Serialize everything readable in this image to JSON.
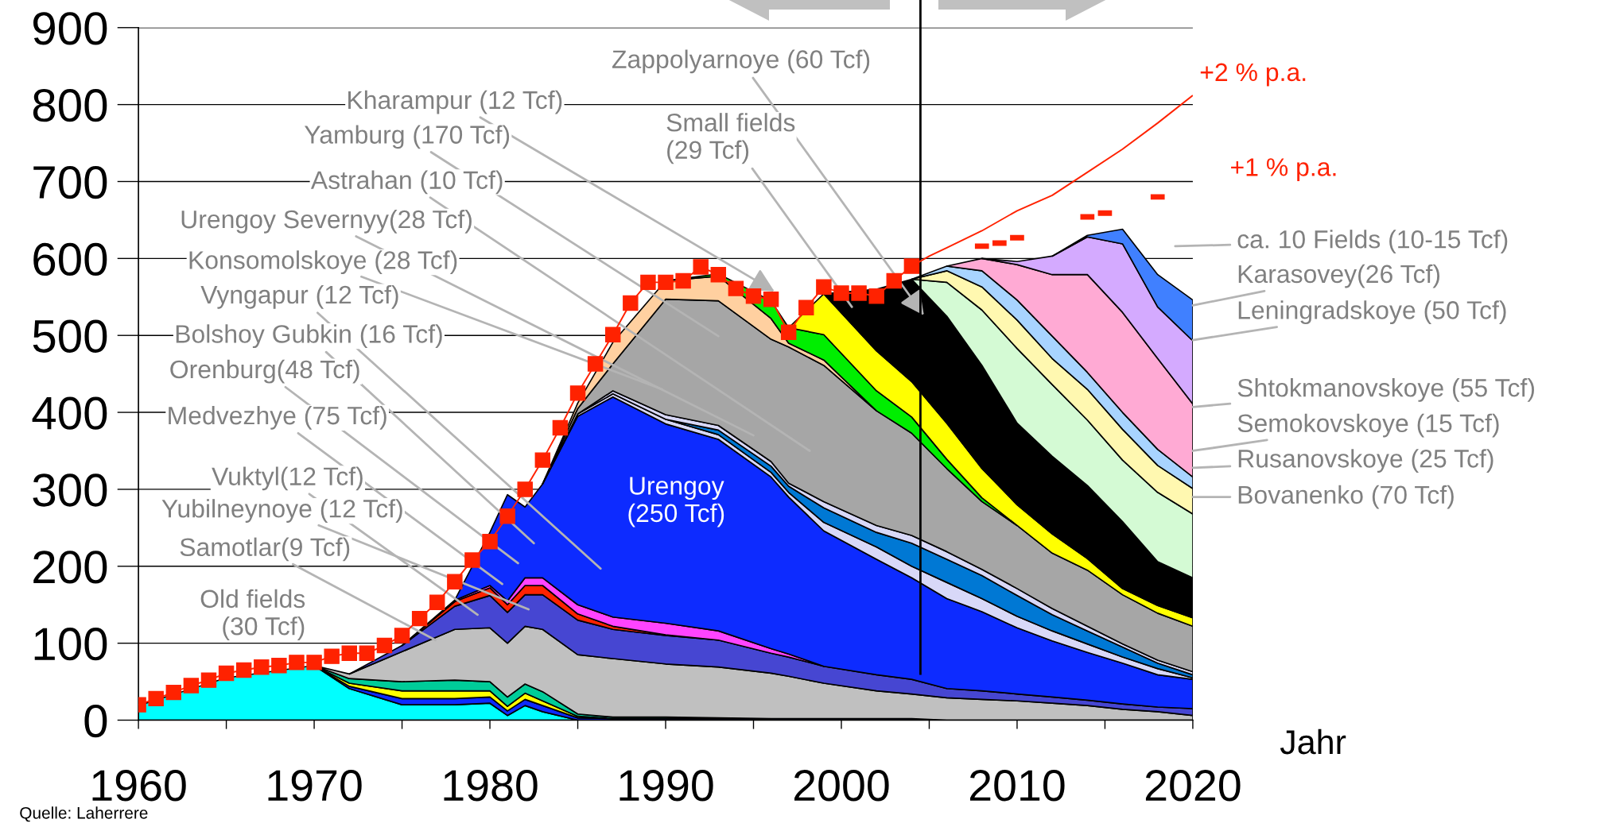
{
  "chart_data": {
    "type": "area",
    "stacked": true,
    "x": [
      1960,
      1965,
      1970,
      1972,
      1975,
      1978,
      1980,
      1981,
      1982,
      1983,
      1985,
      1987,
      1990,
      1993,
      1996,
      1997,
      1999,
      2002,
      2004,
      2006,
      2008,
      2010,
      2012,
      2014,
      2016,
      2018,
      2020
    ],
    "series": [
      {
        "color": "#00ffff",
        "values": [
          19,
          55,
          71,
          41,
          20,
          20,
          22,
          6,
          19,
          11,
          0,
          null,
          null,
          null,
          null,
          null,
          null,
          null,
          null,
          null,
          null,
          null,
          null,
          null,
          null,
          null,
          null
        ]
      },
      {
        "color": "#0d2bff",
        "values": [
          null,
          null,
          0,
          3,
          8,
          8,
          8,
          6,
          8,
          8,
          3,
          2,
          2,
          2,
          2,
          2,
          2,
          2,
          2,
          0,
          null,
          null,
          null,
          null,
          null,
          null,
          null
        ]
      },
      {
        "color": "#ffff00",
        "values": [
          null,
          null,
          0,
          4,
          10,
          10,
          8,
          6,
          8,
          6,
          2,
          0,
          null,
          null,
          null,
          null,
          null,
          null,
          null,
          null,
          null,
          null,
          null,
          null,
          null,
          null,
          null
        ]
      },
      {
        "color": "#00cc99",
        "values": [
          null,
          null,
          0,
          6,
          12,
          14,
          12,
          12,
          12,
          12,
          3,
          2,
          2,
          1,
          0,
          null,
          null,
          null,
          null,
          null,
          null,
          null,
          null,
          null,
          null,
          null,
          null
        ]
      },
      {
        "color": "#c0c0c0",
        "values": [
          null,
          null,
          0,
          6,
          39,
          66,
          70,
          70,
          75,
          81,
          77,
          76,
          69,
          66,
          59,
          55,
          46,
          36,
          32,
          29,
          27,
          25,
          22,
          19,
          14,
          11,
          6
        ]
      },
      {
        "color": "#4646d2",
        "values": [
          null,
          null,
          null,
          0,
          8,
          30,
          42,
          40,
          41,
          45,
          45,
          38,
          37,
          35,
          26,
          25,
          22,
          21,
          19,
          12,
          11,
          9,
          8,
          7,
          7,
          6,
          9
        ]
      },
      {
        "color": "#ff2200",
        "values": [
          null,
          null,
          null,
          null,
          0,
          6,
          10,
          10,
          12,
          12,
          8,
          4,
          1,
          0,
          null,
          null,
          null,
          null,
          null,
          null,
          null,
          null,
          null,
          null,
          null,
          null,
          null
        ]
      },
      {
        "color": "#ff44ff",
        "values": [
          null,
          null,
          null,
          null,
          0,
          2,
          3,
          5,
          10,
          10,
          12,
          12,
          15,
          12,
          6,
          4,
          0,
          null,
          null,
          null,
          null,
          null,
          null,
          null,
          null,
          null,
          null
        ]
      },
      {
        "color": "#0d2bff",
        "values": [
          null,
          null,
          null,
          null,
          null,
          0,
          69,
          138,
          92,
          122,
          245,
          286,
          259,
          249,
          223,
          204,
          176,
          150,
          132,
          117,
          103,
          86,
          73,
          62,
          53,
          42,
          38
        ]
      },
      {
        "color": "#d8d8f8",
        "values": [
          null,
          null,
          null,
          null,
          null,
          null,
          null,
          null,
          null,
          0,
          3,
          4,
          6,
          6,
          6,
          6,
          11,
          16,
          15,
          21,
          17,
          15,
          13,
          11,
          8,
          8,
          2
        ]
      },
      {
        "color": "#0078d4",
        "values": [
          null,
          null,
          null,
          null,
          null,
          null,
          null,
          null,
          null,
          null,
          null,
          null,
          0,
          6,
          8,
          8,
          19,
          19,
          30,
          30,
          30,
          27,
          21,
          17,
          13,
          7,
          4
        ]
      },
      {
        "color": "#d8d8f8",
        "values": [
          null,
          null,
          null,
          null,
          null,
          null,
          null,
          null,
          null,
          null,
          0,
          4,
          6,
          6,
          6,
          4,
          8,
          9,
          10,
          10,
          8,
          9,
          8,
          6,
          4,
          4,
          4
        ]
      },
      {
        "color": "#a6a6a6",
        "values": [
          null,
          null,
          null,
          null,
          null,
          null,
          null,
          null,
          null,
          0,
          7,
          35,
          150,
          162,
          159,
          177,
          177,
          149,
          133,
          108,
          88,
          82,
          72,
          73,
          64,
          61,
          59
        ]
      },
      {
        "color": "#ffd0a0",
        "values": [
          null,
          null,
          null,
          null,
          null,
          null,
          null,
          null,
          null,
          0,
          7,
          28,
          24,
          32,
          27,
          5,
          7,
          0,
          null,
          null,
          null,
          null,
          null,
          null,
          null,
          null,
          null
        ]
      },
      {
        "color": "#00ee00",
        "values": [
          null,
          null,
          null,
          null,
          null,
          null,
          null,
          null,
          null,
          null,
          null,
          null,
          0,
          3,
          23,
          20,
          33,
          26,
          21,
          12,
          5,
          0,
          null,
          null,
          null,
          null,
          null
        ]
      },
      {
        "color": "#ffff00",
        "values": [
          null,
          null,
          null,
          null,
          null,
          null,
          null,
          null,
          null,
          null,
          null,
          null,
          null,
          null,
          null,
          0,
          53,
          52,
          46,
          47,
          38,
          27,
          25,
          15,
          8,
          10,
          11
        ]
      },
      {
        "color": "#000000",
        "values": [
          null,
          null,
          null,
          null,
          null,
          null,
          null,
          null,
          null,
          null,
          null,
          null,
          null,
          null,
          null,
          null,
          0,
          80,
          133,
          139,
          134,
          106,
          101,
          95,
          87,
          57,
          52
        ]
      },
      {
        "color": "#d4fad4",
        "values": [
          null,
          null,
          null,
          null,
          null,
          null,
          null,
          null,
          null,
          null,
          null,
          null,
          null,
          null,
          null,
          null,
          null,
          null,
          0,
          44,
          72,
          97,
          93,
          85,
          80,
          90,
          83
        ]
      },
      {
        "color": "#fff8b0",
        "values": [
          null,
          null,
          null,
          null,
          null,
          null,
          null,
          null,
          null,
          null,
          null,
          null,
          null,
          null,
          null,
          null,
          null,
          null,
          0,
          15,
          30,
          37,
          34,
          40,
          40,
          35,
          33
        ]
      },
      {
        "color": "#a8d4ff",
        "values": [
          null,
          null,
          null,
          null,
          null,
          null,
          null,
          null,
          null,
          null,
          null,
          null,
          null,
          null,
          null,
          null,
          null,
          null,
          0,
          6,
          21,
          26,
          29,
          22,
          22,
          21,
          15
        ]
      },
      {
        "color": "#ffaad4",
        "values": [
          null,
          null,
          null,
          null,
          null,
          null,
          null,
          null,
          null,
          null,
          null,
          null,
          null,
          null,
          null,
          null,
          null,
          null,
          null,
          0,
          16,
          46,
          80,
          127,
          130,
          118,
          95
        ]
      },
      {
        "color": "#d4aaff",
        "values": [
          null,
          null,
          null,
          null,
          null,
          null,
          null,
          null,
          null,
          null,
          null,
          null,
          null,
          null,
          null,
          null,
          null,
          null,
          null,
          null,
          0,
          4,
          24,
          49,
          89,
          67,
          82
        ]
      },
      {
        "color": "#4080ff",
        "values": [
          null,
          null,
          null,
          null,
          null,
          null,
          null,
          null,
          null,
          null,
          null,
          null,
          null,
          null,
          null,
          null,
          null,
          null,
          null,
          null,
          null,
          null,
          0,
          2,
          19,
          42,
          53
        ]
      },
      {
        "type": "line",
        "marker": "square",
        "line_style": "solid",
        "color": "#ff2200",
        "x": [
          1960,
          1961,
          1962,
          1963,
          1964,
          1965,
          1966,
          1967,
          1968,
          1969,
          1970,
          1971,
          1972,
          1973,
          1974,
          1975,
          1976,
          1977,
          1978,
          1979,
          1980,
          1981,
          1982,
          1983,
          1984,
          1985,
          1986,
          1987,
          1988,
          1989,
          1990,
          1991,
          1992,
          1993,
          1994,
          1995,
          1996,
          1997,
          1998,
          1999,
          2000,
          2001,
          2002,
          2003,
          2004
        ],
        "values": [
          20,
          28,
          36,
          45,
          52,
          61,
          65,
          69,
          71,
          75,
          75,
          83,
          87,
          87,
          97,
          110,
          132,
          153,
          180,
          208,
          232,
          265,
          300,
          338,
          380,
          425,
          463,
          501,
          542,
          569,
          569,
          571,
          589,
          579,
          561,
          551,
          547,
          504,
          536,
          563,
          555,
          555,
          551,
          571,
          590
        ]
      },
      {
        "type": "line",
        "name": "+2 % p.a.",
        "marker": "none",
        "line_style": "solid",
        "color": "#ff2200",
        "x": [
          2004,
          2005,
          2006,
          2008,
          2010,
          2012,
          2014,
          2016,
          2018,
          2020
        ],
        "values": [
          590,
          603,
          614,
          636,
          662,
          682,
          712,
          742,
          776,
          812
        ]
      },
      {
        "type": "line",
        "name": "+1 % p.a.",
        "marker": "none",
        "line_style": "solid",
        "color": "#ff2200",
        "x": [
          2007.6,
          2008.4,
          2008.5,
          2008.6,
          2009.4,
          2009.5,
          2009.6,
          2010.4,
          2012,
          2013.6,
          2014.4,
          2014.5,
          2014.6,
          2015.4,
          2016.5,
          2017.6,
          2018.4
        ],
        "values": [
          616,
          616,
          null,
          620,
          620,
          null,
          627,
          627,
          null,
          654,
          654,
          null,
          659,
          659,
          null,
          680,
          680
        ]
      }
    ],
    "xlim": [
      1960,
      2020
    ],
    "xticks": [
      1960,
      {
        "value": 1965,
        "label": null
      },
      1970,
      {
        "value": 1975,
        "label": null
      },
      1980,
      {
        "value": 1985,
        "label": null
      },
      1990,
      {
        "value": 1995,
        "label": null
      },
      2000,
      {
        "value": 2005,
        "label": null
      },
      2010,
      {
        "value": 2015,
        "label": null
      },
      2020
    ],
    "ylim": [
      0,
      900
    ],
    "yticks": [
      0,
      100,
      200,
      300,
      400,
      500,
      600,
      700,
      800,
      900
    ],
    "grid": "y",
    "xlabel": "Jahr",
    "ref_lines": [
      {
        "axis": "x",
        "value": 2004.5
      }
    ],
    "annotations": [
      {
        "text": "Zappolyarnoye (60 Tcf)",
        "x": 2004.7,
        "y": 526
      },
      {
        "text": "Kharampur (12 Tcf)",
        "x": 1996.2,
        "y": 557
      },
      "Small fields\n(29 Tcf)",
      "Yamburg (170 Tcf)",
      "Astrahan (10 Tcf)",
      "Urengoy Severnyy(28 Tcf)",
      "Konsomolskoye (28 Tcf)",
      "Vyngapur (12 Tcf)",
      "Bolshoy Gubkin (16 Tcf)",
      "Orenburg(48 Tcf)",
      "Medvezhye (75 Tcf)",
      "Vuktyl(12 Tcf)",
      "Yubilneynoye (12 Tcf)",
      {
        "text": "Samotlar(9 Tcf)",
        "x": 1976.9,
        "y": 104
      },
      "Old fields\n(30 Tcf)",
      "Urengoy\n(250 Tcf)",
      "ca. 10 Fields (10-15 Tcf)",
      {
        "text": "Karasovey(26 Tcf)",
        "x": 2020,
        "y": 539
      },
      {
        "text": "Leningradskoye (50 Tcf)",
        "x": 2020,
        "y": 494
      },
      "Shtokmanovskoye (55 Tcf)",
      {
        "text": "Semokovskoye (15 Tcf)",
        "x": 2020,
        "y": 350
      },
      "Rusanovskoye (25 Tcf)",
      "Bovanenko (70 Tcf)",
      "Quelle: Laherrere"
    ]
  }
}
